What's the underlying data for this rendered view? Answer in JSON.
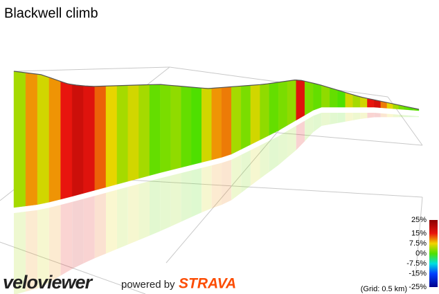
{
  "chart_data": {
    "type": "profile",
    "title": "Blackwell climb",
    "gradients": [
      4,
      10,
      6,
      10,
      15,
      18,
      16,
      12,
      7,
      4,
      6,
      4,
      1,
      2,
      3,
      1,
      0,
      6,
      10,
      11,
      4,
      2,
      6,
      3,
      1,
      2,
      3,
      16,
      2,
      1,
      3,
      1,
      0,
      6,
      4,
      6,
      15,
      17,
      11,
      7,
      4,
      2,
      1,
      0,
      1,
      0
    ],
    "colorbar_ticks": [
      {
        "value": 25,
        "label": "25%"
      },
      {
        "value": 15,
        "label": "15%"
      },
      {
        "value": 7.5,
        "label": "7.5%"
      },
      {
        "value": 0,
        "label": "0%"
      },
      {
        "value": -7.5,
        "label": "-7.5%"
      },
      {
        "value": -15,
        "label": "-15%"
      },
      {
        "value": -25,
        "label": "-25%"
      }
    ],
    "colorbar_colors": [
      "#8b0000",
      "#e8150e",
      "#f2d400",
      "#4ee000",
      "#00e0e0",
      "#0040ff",
      "#00008b"
    ],
    "grid_note": "(Grid: 0.5 km)",
    "brand": "veloviewer",
    "powered_by": "powered by",
    "partner": "STRAVA"
  }
}
